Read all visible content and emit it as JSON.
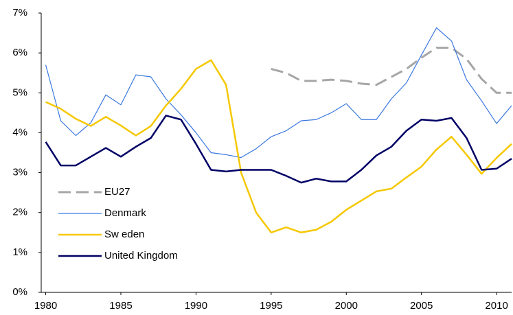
{
  "chart_data": {
    "type": "line",
    "x": [
      1980,
      1981,
      1982,
      1983,
      1984,
      1985,
      1986,
      1987,
      1988,
      1989,
      1990,
      1991,
      1992,
      1993,
      1994,
      1995,
      1996,
      1997,
      1998,
      1999,
      2000,
      2001,
      2002,
      2003,
      2004,
      2005,
      2006,
      2007,
      2008,
      2009,
      2010,
      2011
    ],
    "series": [
      {
        "name": "EU27",
        "color": "#a6a6a6",
        "dashed": true,
        "width": 3,
        "values": [
          null,
          null,
          null,
          null,
          null,
          null,
          null,
          null,
          null,
          null,
          null,
          null,
          null,
          null,
          null,
          5.6,
          5.5,
          5.3,
          5.3,
          5.33,
          5.3,
          5.23,
          5.2,
          5.4,
          5.6,
          5.88,
          6.13,
          6.13,
          5.85,
          5.35,
          5.0,
          5.0
        ]
      },
      {
        "name": "Denmark",
        "color": "#3a78e0",
        "width": 1.2,
        "values": [
          5.7,
          4.3,
          3.93,
          4.25,
          4.95,
          4.7,
          5.45,
          5.4,
          4.85,
          4.45,
          4.0,
          3.5,
          3.45,
          3.38,
          3.6,
          3.9,
          4.05,
          4.3,
          4.33,
          4.5,
          4.73,
          4.33,
          4.33,
          4.85,
          5.25,
          5.95,
          6.63,
          6.3,
          5.33,
          4.8,
          4.23,
          4.68
        ]
      },
      {
        "name": "Sw eden",
        "color": "#f5c800",
        "width": 2.5,
        "values": [
          4.77,
          4.6,
          4.35,
          4.17,
          4.4,
          4.18,
          3.93,
          4.17,
          4.68,
          5.1,
          5.6,
          5.82,
          5.2,
          3.0,
          2.0,
          1.5,
          1.63,
          1.5,
          1.57,
          1.77,
          2.07,
          2.3,
          2.53,
          2.6,
          2.88,
          3.15,
          3.58,
          3.9,
          3.45,
          2.97,
          3.37,
          3.72
        ]
      },
      {
        "name": "United Kingdom",
        "color": "#000066",
        "width": 2.5,
        "values": [
          3.77,
          3.18,
          3.18,
          3.4,
          3.62,
          3.4,
          3.65,
          3.87,
          4.43,
          4.33,
          3.72,
          3.07,
          3.03,
          3.07,
          3.07,
          3.07,
          2.92,
          2.75,
          2.85,
          2.78,
          2.78,
          3.07,
          3.43,
          3.65,
          4.05,
          4.33,
          4.3,
          4.37,
          3.87,
          3.07,
          3.1,
          3.35
        ]
      }
    ],
    "xlim": [
      1979.7,
      2011
    ],
    "xticks": [
      1980,
      1985,
      1990,
      1995,
      2000,
      2005,
      2010
    ],
    "ylim": [
      0,
      7
    ],
    "yticks": [
      {
        "value": 0,
        "label": "0%"
      },
      {
        "value": 1,
        "label": "1%"
      },
      {
        "value": 2,
        "label": "2%"
      },
      {
        "value": 3,
        "label": "3%"
      },
      {
        "value": 4,
        "label": "4%"
      },
      {
        "value": 5,
        "label": "5%"
      },
      {
        "value": 6,
        "label": "6%"
      },
      {
        "value": 7,
        "label": "7%"
      }
    ],
    "legend": "lower-left"
  }
}
